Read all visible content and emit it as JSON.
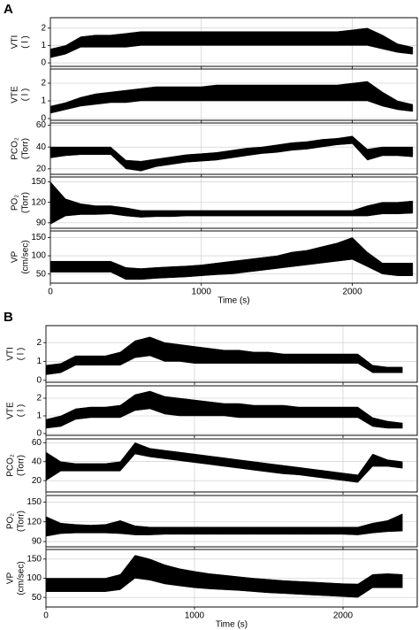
{
  "chart_data": [
    {
      "type": "band",
      "panel_label": "A",
      "ylabel": [
        "VTI",
        "( l )"
      ],
      "xlim": [
        0,
        2430
      ],
      "xticks": [
        0,
        1000,
        2000
      ],
      "ylim": [
        -0.2,
        2.6
      ],
      "yticks": [
        0,
        1,
        2
      ],
      "grid": true,
      "color": "#000000",
      "x": [
        0,
        100,
        200,
        300,
        400,
        500,
        600,
        700,
        800,
        900,
        1000,
        1100,
        1200,
        1300,
        1400,
        1500,
        1600,
        1700,
        1800,
        1900,
        2000,
        2100,
        2200,
        2300,
        2400
      ],
      "low": [
        0.3,
        0.5,
        0.9,
        0.9,
        0.9,
        0.9,
        1.0,
        1.0,
        1.0,
        1.0,
        1.0,
        1.0,
        1.0,
        1.0,
        1.0,
        1.0,
        1.0,
        1.0,
        1.0,
        1.0,
        1.0,
        1.0,
        0.8,
        0.6,
        0.5
      ],
      "high": [
        0.8,
        1.0,
        1.5,
        1.6,
        1.6,
        1.7,
        1.8,
        1.8,
        1.8,
        1.8,
        1.8,
        1.8,
        1.8,
        1.8,
        1.8,
        1.8,
        1.8,
        1.8,
        1.8,
        1.8,
        1.9,
        2.0,
        1.6,
        1.1,
        0.9
      ]
    },
    {
      "type": "band",
      "ylabel": [
        "VTE",
        "( l )"
      ],
      "xlim": [
        0,
        2430
      ],
      "xticks": [
        0,
        1000,
        2000
      ],
      "ylim": [
        -0.1,
        2.8
      ],
      "yticks": [
        0,
        1,
        2
      ],
      "grid": true,
      "color": "#000000",
      "x": [
        0,
        100,
        200,
        300,
        400,
        500,
        600,
        700,
        800,
        900,
        1000,
        1100,
        1200,
        1300,
        1400,
        1500,
        1600,
        1700,
        1800,
        1900,
        2000,
        2100,
        2200,
        2300,
        2400
      ],
      "low": [
        0.3,
        0.5,
        0.7,
        0.8,
        0.9,
        0.9,
        1.0,
        1.0,
        1.0,
        1.0,
        1.0,
        1.0,
        1.0,
        1.0,
        1.0,
        1.0,
        1.0,
        1.0,
        1.0,
        1.0,
        1.0,
        1.0,
        0.7,
        0.5,
        0.4
      ],
      "high": [
        0.7,
        0.9,
        1.2,
        1.4,
        1.5,
        1.6,
        1.7,
        1.8,
        1.8,
        1.8,
        1.8,
        1.9,
        1.9,
        1.9,
        1.9,
        1.9,
        1.9,
        1.9,
        1.9,
        1.9,
        2.0,
        2.1,
        1.5,
        1.0,
        0.8
      ]
    },
    {
      "type": "band",
      "ylabel": [
        "PCO₂",
        "(Torr)"
      ],
      "xlim": [
        0,
        2430
      ],
      "xticks": [
        0,
        1000,
        2000
      ],
      "ylim": [
        15,
        62
      ],
      "yticks": [
        20,
        40,
        60
      ],
      "grid": true,
      "color": "#000000",
      "x": [
        0,
        100,
        200,
        300,
        400,
        500,
        600,
        700,
        800,
        900,
        1000,
        1100,
        1200,
        1300,
        1400,
        1500,
        1600,
        1700,
        1800,
        1900,
        2000,
        2100,
        2200,
        2300,
        2400
      ],
      "low": [
        30,
        32,
        33,
        33,
        33,
        20,
        18,
        22,
        24,
        26,
        27,
        28,
        30,
        32,
        34,
        35,
        37,
        38,
        40,
        42,
        43,
        28,
        32,
        32,
        31
      ],
      "high": [
        40,
        40,
        40,
        40,
        40,
        28,
        27,
        29,
        31,
        33,
        34,
        35,
        37,
        39,
        40,
        42,
        44,
        45,
        47,
        48,
        50,
        38,
        40,
        40,
        40
      ]
    },
    {
      "type": "band",
      "ylabel": [
        "PO₂",
        "(Torr)"
      ],
      "xlim": [
        0,
        2430
      ],
      "xticks": [
        0,
        1000,
        2000
      ],
      "ylim": [
        82,
        157
      ],
      "yticks": [
        90,
        120,
        150
      ],
      "grid": true,
      "color": "#000000",
      "x": [
        0,
        100,
        200,
        300,
        400,
        500,
        600,
        700,
        800,
        900,
        1000,
        1100,
        1200,
        1300,
        1400,
        1500,
        1600,
        1700,
        1800,
        1900,
        2000,
        2100,
        2200,
        2300,
        2400
      ],
      "low": [
        88,
        100,
        102,
        102,
        103,
        100,
        98,
        99,
        99,
        100,
        100,
        100,
        100,
        100,
        100,
        100,
        100,
        100,
        100,
        100,
        100,
        100,
        103,
        103,
        104
      ],
      "high": [
        150,
        125,
        118,
        115,
        115,
        112,
        108,
        108,
        108,
        108,
        108,
        108,
        108,
        108,
        108,
        108,
        108,
        108,
        108,
        108,
        108,
        115,
        120,
        120,
        122
      ]
    },
    {
      "type": "band",
      "ylabel": [
        "VP",
        "(cm/sec)"
      ],
      "xlabel": "Time (s)",
      "xlim": [
        0,
        2430
      ],
      "xticks": [
        0,
        1000,
        2000
      ],
      "ylim": [
        25,
        168
      ],
      "yticks": [
        50,
        100,
        150
      ],
      "grid": true,
      "color": "#000000",
      "x": [
        0,
        100,
        200,
        300,
        400,
        500,
        600,
        700,
        800,
        900,
        1000,
        1100,
        1200,
        1300,
        1400,
        1500,
        1600,
        1700,
        1800,
        1900,
        2000,
        2100,
        2200,
        2300,
        2400
      ],
      "low": [
        55,
        55,
        55,
        55,
        55,
        35,
        35,
        38,
        40,
        42,
        45,
        48,
        50,
        55,
        60,
        65,
        70,
        75,
        80,
        85,
        90,
        70,
        50,
        45,
        45
      ],
      "high": [
        85,
        85,
        85,
        85,
        85,
        68,
        65,
        68,
        70,
        72,
        75,
        80,
        85,
        90,
        95,
        100,
        110,
        115,
        125,
        135,
        150,
        110,
        80,
        80,
        80
      ]
    },
    {
      "type": "band",
      "panel_label": "B",
      "ylabel": [
        "VTI",
        "( l )"
      ],
      "xlim": [
        0,
        2500
      ],
      "xticks": [
        0,
        1000,
        2000
      ],
      "ylim": [
        -0.1,
        2.9
      ],
      "yticks": [
        0,
        1,
        2
      ],
      "grid": true,
      "color": "#000000",
      "x": [
        0,
        100,
        200,
        300,
        400,
        500,
        600,
        700,
        800,
        900,
        1000,
        1100,
        1200,
        1300,
        1400,
        1500,
        1600,
        1700,
        1800,
        1900,
        2000,
        2100,
        2200,
        2300,
        2400
      ],
      "low": [
        0.3,
        0.4,
        0.8,
        0.8,
        0.8,
        0.8,
        1.2,
        1.3,
        1.0,
        1.0,
        0.9,
        0.9,
        0.9,
        0.9,
        0.9,
        0.9,
        0.9,
        0.9,
        0.9,
        0.9,
        0.9,
        0.9,
        0.4,
        0.4,
        0.4
      ],
      "high": [
        0.8,
        0.9,
        1.3,
        1.3,
        1.3,
        1.5,
        2.1,
        2.3,
        2.0,
        1.9,
        1.8,
        1.7,
        1.6,
        1.6,
        1.5,
        1.5,
        1.4,
        1.4,
        1.4,
        1.4,
        1.4,
        1.4,
        0.8,
        0.7,
        0.7
      ]
    },
    {
      "type": "band",
      "ylabel": [
        "VTE",
        "( l )"
      ],
      "xlim": [
        0,
        2500
      ],
      "xticks": [
        0,
        1000,
        2000
      ],
      "ylim": [
        -0.1,
        2.7
      ],
      "yticks": [
        0,
        1,
        2
      ],
      "grid": true,
      "color": "#000000",
      "x": [
        0,
        100,
        200,
        300,
        400,
        500,
        600,
        700,
        800,
        900,
        1000,
        1100,
        1200,
        1300,
        1400,
        1500,
        1600,
        1700,
        1800,
        1900,
        2000,
        2100,
        2200,
        2300,
        2400
      ],
      "low": [
        0.3,
        0.4,
        0.8,
        0.9,
        0.9,
        0.9,
        1.3,
        1.4,
        1.1,
        1.0,
        1.0,
        1.0,
        1.0,
        0.9,
        0.9,
        0.9,
        0.9,
        0.9,
        0.9,
        0.9,
        0.9,
        0.9,
        0.4,
        0.3,
        0.3
      ],
      "high": [
        0.8,
        1.0,
        1.4,
        1.5,
        1.5,
        1.6,
        2.2,
        2.4,
        2.1,
        2.0,
        1.9,
        1.8,
        1.7,
        1.7,
        1.6,
        1.6,
        1.6,
        1.5,
        1.5,
        1.5,
        1.5,
        1.5,
        0.9,
        0.7,
        0.6
      ]
    },
    {
      "type": "band",
      "ylabel": [
        "PCO₂",
        "(Torr)"
      ],
      "xlim": [
        0,
        2500
      ],
      "xticks": [
        0,
        1000,
        2000
      ],
      "ylim": [
        8,
        64
      ],
      "yticks": [
        20,
        40,
        60
      ],
      "grid": true,
      "color": "#000000",
      "x": [
        0,
        100,
        200,
        300,
        400,
        500,
        600,
        700,
        800,
        900,
        1000,
        1100,
        1200,
        1300,
        1400,
        1500,
        1600,
        1700,
        1800,
        1900,
        2000,
        2100,
        2200,
        2300,
        2400
      ],
      "low": [
        20,
        30,
        30,
        30,
        30,
        30,
        48,
        45,
        43,
        41,
        39,
        37,
        35,
        33,
        31,
        29,
        27,
        26,
        24,
        22,
        20,
        18,
        35,
        35,
        33
      ],
      "high": [
        50,
        40,
        38,
        38,
        38,
        40,
        60,
        54,
        52,
        50,
        48,
        46,
        44,
        42,
        40,
        38,
        36,
        34,
        32,
        30,
        28,
        26,
        48,
        42,
        40
      ]
    },
    {
      "type": "band",
      "ylabel": [
        "PO₂",
        "(Torr)"
      ],
      "xlim": [
        0,
        2500
      ],
      "xticks": [
        0,
        1000,
        2000
      ],
      "ylim": [
        82,
        160
      ],
      "yticks": [
        90,
        120,
        150
      ],
      "grid": true,
      "color": "#000000",
      "x": [
        0,
        100,
        200,
        300,
        400,
        500,
        600,
        700,
        800,
        900,
        1000,
        1100,
        1200,
        1300,
        1400,
        1500,
        1600,
        1700,
        1800,
        1900,
        2000,
        2100,
        2200,
        2300,
        2400
      ],
      "low": [
        98,
        102,
        103,
        103,
        103,
        102,
        100,
        100,
        101,
        101,
        101,
        101,
        101,
        101,
        101,
        101,
        101,
        101,
        101,
        101,
        101,
        100,
        103,
        105,
        106
      ],
      "high": [
        128,
        118,
        116,
        115,
        116,
        122,
        114,
        112,
        112,
        112,
        112,
        112,
        112,
        112,
        112,
        112,
        112,
        112,
        112,
        112,
        112,
        112,
        118,
        122,
        132
      ]
    },
    {
      "type": "band",
      "ylabel": [
        "VP",
        "(cm/sec)"
      ],
      "xlabel": "Time (s)",
      "xlim": [
        0,
        2500
      ],
      "xticks": [
        0,
        1000,
        2000
      ],
      "ylim": [
        25,
        175
      ],
      "yticks": [
        50,
        100,
        150
      ],
      "grid": true,
      "color": "#000000",
      "x": [
        0,
        100,
        200,
        300,
        400,
        500,
        600,
        700,
        800,
        900,
        1000,
        1100,
        1200,
        1300,
        1400,
        1500,
        1600,
        1700,
        1800,
        1900,
        2000,
        2100,
        2200,
        2300,
        2400
      ],
      "low": [
        65,
        65,
        65,
        65,
        65,
        70,
        100,
        95,
        85,
        80,
        75,
        72,
        70,
        68,
        65,
        62,
        60,
        58,
        56,
        54,
        52,
        50,
        75,
        75,
        75
      ],
      "high": [
        100,
        100,
        100,
        100,
        100,
        110,
        160,
        150,
        135,
        125,
        118,
        112,
        108,
        104,
        100,
        97,
        94,
        92,
        90,
        88,
        86,
        85,
        110,
        112,
        110
      ]
    }
  ]
}
